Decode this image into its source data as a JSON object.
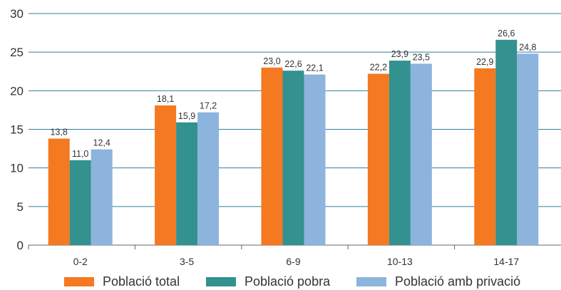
{
  "chart_data": {
    "type": "bar",
    "categories": [
      "0-2",
      "3-5",
      "6-9",
      "10-13",
      "14-17"
    ],
    "series": [
      {
        "name": "Població total",
        "color": "#f47920",
        "values": [
          13.8,
          18.1,
          23.0,
          22.2,
          22.9
        ],
        "labels": [
          "13,8",
          "18,1",
          "23,0",
          "22,2",
          "22,9"
        ]
      },
      {
        "name": "Població pobra",
        "color": "#33918f",
        "values": [
          11.0,
          15.9,
          22.6,
          23.9,
          26.6
        ],
        "labels": [
          "11,0",
          "15,9",
          "22,6",
          "23,9",
          "26,6"
        ]
      },
      {
        "name": "Població amb privació",
        "color": "#8cb4dc",
        "values": [
          12.4,
          17.2,
          22.1,
          23.5,
          24.8
        ],
        "labels": [
          "12,4",
          "17,2",
          "22,1",
          "23,5",
          "24,8"
        ]
      }
    ],
    "yticks": [
      "0",
      "5",
      "10",
      "15",
      "20",
      "25",
      "30"
    ],
    "ylim": [
      0,
      30
    ],
    "grid": true,
    "legend_position": "bottom",
    "title": "",
    "xlabel": "",
    "ylabel": ""
  }
}
